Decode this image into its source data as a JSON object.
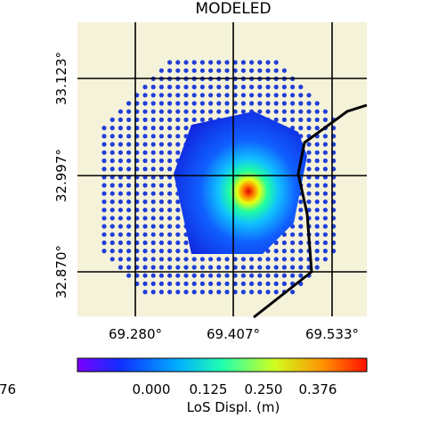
{
  "title": "MODELED",
  "latitude_labels": [
    "33.123°",
    "32.997°",
    "32.870°"
  ],
  "longitude_labels": [
    "69.280°",
    "69.407°",
    "69.533°"
  ],
  "colorbar": {
    "tick_labels": [
      "0.000",
      "0.125",
      "0.250",
      "0.376"
    ],
    "label": "LoS Displ. (m)"
  },
  "cropped_label": "76"
}
